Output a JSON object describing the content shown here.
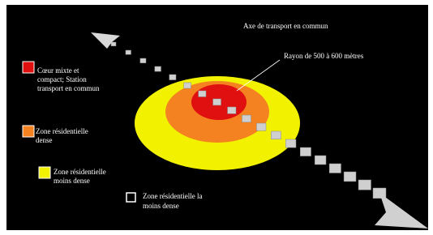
{
  "labels": {
    "axis": "Axe de transport en commun",
    "radius": "Rayon de 500 à 600 mètres"
  },
  "legend": [
    {
      "lines": [
        "Cœur mixte et",
        "compact; Station",
        "transport en commun"
      ]
    },
    {
      "lines": [
        "Zone résidentielle",
        "dense"
      ]
    },
    {
      "lines": [
        "Zone résidentielle",
        "moins dense"
      ]
    },
    {
      "lines": [
        "Zone résidentielle la",
        "moins dense"
      ]
    }
  ]
}
